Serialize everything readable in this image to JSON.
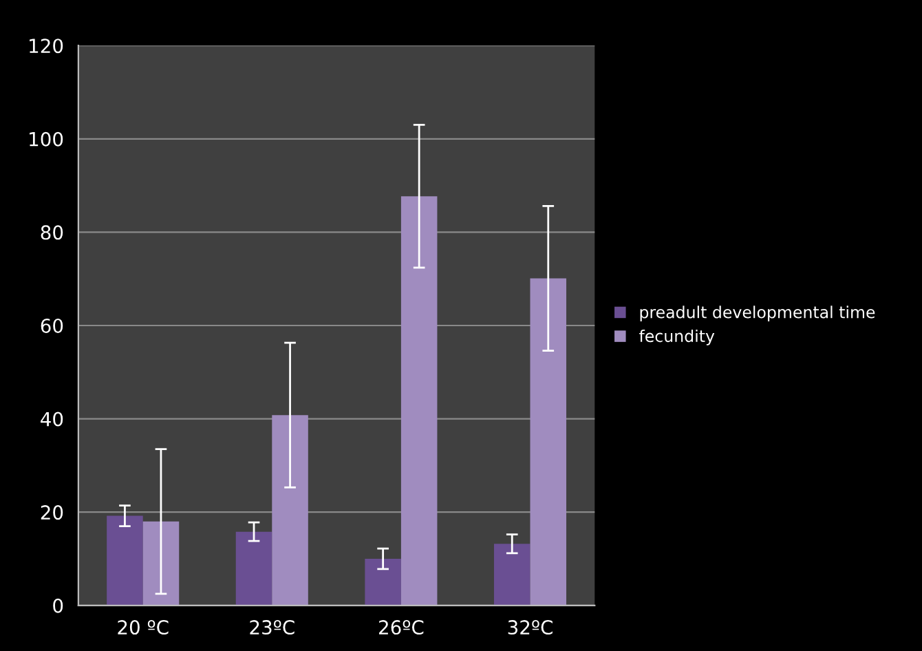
{
  "chart_data": {
    "type": "bar",
    "categories": [
      "20 ºC",
      "23ºC",
      "26ºC",
      "32ºC"
    ],
    "series": [
      {
        "name": "preadult developmental time",
        "color": "#6a4f93",
        "values": [
          19.2,
          15.8,
          10.0,
          13.2
        ],
        "errors": [
          2.2,
          2,
          2.2,
          2
        ]
      },
      {
        "name": "fecundity",
        "color": "#a08cbf",
        "values": [
          18,
          40.8,
          87.7,
          70.1
        ],
        "errors": [
          15.5,
          15.5,
          15.3,
          15.5
        ]
      }
    ],
    "ylim": [
      0,
      120
    ],
    "yticks": [
      0,
      20,
      40,
      60,
      80,
      100,
      120
    ],
    "grid": "y",
    "legend": "right"
  }
}
